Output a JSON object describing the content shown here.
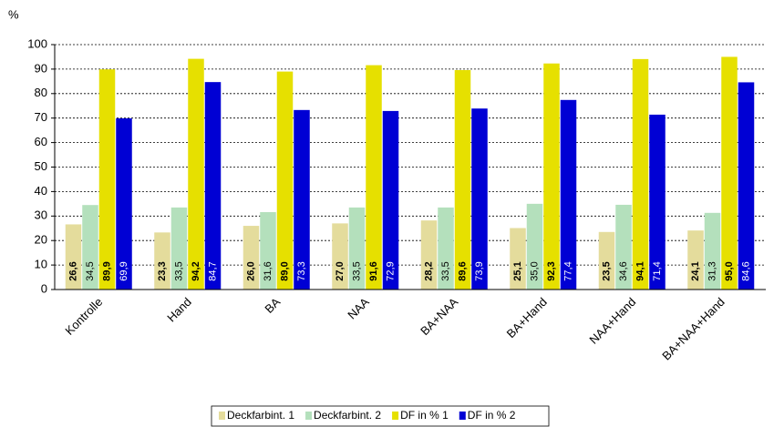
{
  "chart_data": {
    "type": "bar",
    "ylabel": "%",
    "categories": [
      "Kontrolle",
      "Hand",
      "BA",
      "NAA",
      "BA+NAA",
      "BA+Hand",
      "NAA+Hand",
      "BA+NAA+Hand"
    ],
    "series": [
      {
        "name": "Deckfarbint. 1",
        "color": "#e4dc9c",
        "values": [
          26.6,
          23.3,
          26.0,
          27.0,
          28.2,
          25.1,
          23.5,
          24.1
        ],
        "value_labels": [
          "26,6",
          "23,3",
          "26,0",
          "27,0",
          "28,2",
          "25,1",
          "23,5",
          "24,1"
        ]
      },
      {
        "name": "Deckfarbint. 2",
        "color": "#b4e0bc",
        "values": [
          34.5,
          33.5,
          31.6,
          33.5,
          33.5,
          35.0,
          34.6,
          31.3
        ],
        "value_labels": [
          "34,5",
          "33,5",
          "31,6",
          "33,5",
          "33,5",
          "35,0",
          "34,6",
          "31,3"
        ]
      },
      {
        "name": "DF in % 1",
        "color": "#e6e000",
        "values": [
          89.9,
          94.2,
          89.0,
          91.6,
          89.6,
          92.3,
          94.1,
          95.0
        ],
        "value_labels": [
          "89,9",
          "94,2",
          "89,0",
          "91,6",
          "89,6",
          "92,3",
          "94,1",
          "95,0"
        ]
      },
      {
        "name": "DF in % 2",
        "color": "#0000d4",
        "values": [
          69.9,
          84.7,
          73.3,
          72.9,
          73.9,
          77.4,
          71.4,
          84.6
        ],
        "value_labels": [
          "69,9",
          "84,7",
          "73,3",
          "72,9",
          "73,9",
          "77,4",
          "71,4",
          "84,6"
        ]
      }
    ],
    "ylim": [
      0,
      100
    ],
    "yticks": [
      0,
      10,
      20,
      30,
      40,
      50,
      60,
      70,
      80,
      90,
      100
    ],
    "grid": true,
    "legend": "bottom"
  }
}
